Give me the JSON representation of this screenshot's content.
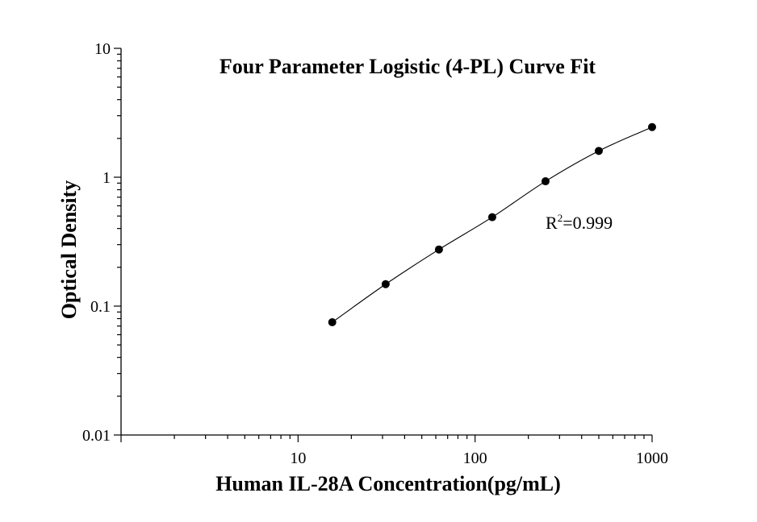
{
  "chart_data": {
    "type": "scatter",
    "title": "Four Parameter Logistic (4-PL) Curve Fit",
    "xlabel": "Human IL-28A Concentration(pg/mL)",
    "ylabel": "Optical Density",
    "x_scale": "log",
    "y_scale": "log",
    "xlim": [
      1,
      1000
    ],
    "ylim": [
      0.01,
      10
    ],
    "x_ticks": [
      {
        "value": 10,
        "label": "10"
      },
      {
        "value": 100,
        "label": "100"
      },
      {
        "value": 1000,
        "label": "1000"
      }
    ],
    "y_ticks": [
      {
        "value": 0.01,
        "label": "0.01"
      },
      {
        "value": 0.1,
        "label": "0.1"
      },
      {
        "value": 1,
        "label": "1"
      },
      {
        "value": 10,
        "label": "10"
      }
    ],
    "grid": false,
    "series": [
      {
        "x": [
          15.6,
          31.25,
          62.5,
          125,
          250,
          500,
          1000
        ],
        "y": [
          0.075,
          0.148,
          0.275,
          0.49,
          0.93,
          1.6,
          2.45
        ]
      }
    ],
    "fit_curve": {
      "model": "4-PL",
      "x_range": [
        15.6,
        1000
      ]
    },
    "annotation": {
      "r2_base": "R",
      "r2_sup": "2",
      "r2_value": "=0.999"
    }
  }
}
